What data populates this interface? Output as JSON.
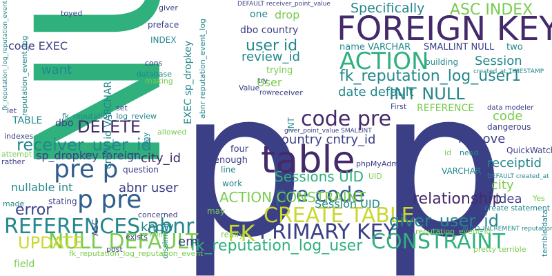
{
  "palette": {
    "navy": "#3b3f86",
    "blue": "#2f5d8c",
    "teal": "#23878c",
    "green": "#2fb07d",
    "lime": "#79cc4f",
    "yellow": "#c9d82f",
    "purple": "#442a6a",
    "grey": "#8a8a8a"
  },
  "words": [
    {
      "text": "NULL",
      "color": "green"
    },
    {
      "text": "p",
      "color": "navy"
    },
    {
      "text": "p",
      "color": "navy"
    },
    {
      "text": "FOREIGN KEY",
      "color": "purple"
    },
    {
      "text": "table",
      "color": "purple"
    },
    {
      "text": "pre p",
      "color": "blue"
    },
    {
      "text": "p pre",
      "color": "blue"
    },
    {
      "text": "REFERENCES abnr",
      "color": "teal"
    },
    {
      "text": "CREATE TABLE",
      "color": "yellow"
    },
    {
      "text": "FK",
      "color": "yellow"
    },
    {
      "text": "PRIMARY KEY",
      "color": "navy"
    },
    {
      "text": "NULL DEFAULT",
      "color": "lime"
    },
    {
      "text": "CONSTRAINT",
      "color": "green"
    },
    {
      "text": "ACTION",
      "color": "green"
    },
    {
      "text": "code pre",
      "color": "purple"
    },
    {
      "text": "pre code",
      "color": "blue"
    },
    {
      "text": "receiver_user_id",
      "color": "teal"
    },
    {
      "text": "fk_reputation_log_user",
      "color": "green"
    },
    {
      "text": "fk_reputation_log_user1",
      "color": "teal"
    },
    {
      "text": "giver_user_id",
      "color": "teal"
    },
    {
      "text": "UPDATE",
      "color": "yellow"
    },
    {
      "text": "DELETE",
      "color": "purple"
    },
    {
      "text": "ACTION CONSTRAINT",
      "color": "lime"
    },
    {
      "text": "INT NULL",
      "color": "teal"
    },
    {
      "text": "user id",
      "color": "teal"
    },
    {
      "text": "ASC INDEX",
      "color": "lime"
    },
    {
      "text": "Specifically",
      "color": "teal"
    },
    {
      "text": "sp_dropkey foreign",
      "color": "navy"
    },
    {
      "text": "nullable int",
      "color": "teal"
    },
    {
      "text": "abnr user",
      "color": "navy"
    },
    {
      "text": "city_id",
      "color": "purple"
    },
    {
      "text": "Sessions UID",
      "color": "green"
    },
    {
      "text": "Session UID",
      "color": "teal"
    },
    {
      "text": "relationship",
      "color": "purple"
    },
    {
      "text": "error",
      "color": "navy"
    },
    {
      "text": "country cntry_id",
      "color": "navy"
    },
    {
      "text": "date default",
      "color": "teal"
    },
    {
      "text": "remove",
      "color": "navy"
    },
    {
      "text": "receiptid",
      "color": "teal"
    },
    {
      "text": "city",
      "color": "lime"
    },
    {
      "text": "idea",
      "color": "navy"
    },
    {
      "text": "code",
      "color": "lime"
    },
    {
      "text": "REFERENCE",
      "color": "lime"
    },
    {
      "text": "Session",
      "color": "teal"
    },
    {
      "text": "review_id",
      "color": "teal"
    },
    {
      "text": "dbo country",
      "color": "navy"
    },
    {
      "text": "name VARCHAR",
      "color": "teal"
    },
    {
      "text": "SMALLINT NULL",
      "color": "navy"
    },
    {
      "text": "two",
      "color": "teal"
    },
    {
      "text": "drop",
      "color": "lime"
    },
    {
      "text": "one",
      "color": "teal"
    },
    {
      "text": "code EXEC",
      "color": "navy"
    },
    {
      "text": "TABLE",
      "color": "teal"
    },
    {
      "text": "dbo",
      "color": "navy"
    },
    {
      "text": "want",
      "color": "teal"
    },
    {
      "text": "know",
      "color": "teal"
    },
    {
      "text": "em",
      "color": "navy"
    },
    {
      "text": "field",
      "color": "lime"
    },
    {
      "text": "really",
      "color": "lime"
    },
    {
      "text": "may",
      "color": "lime"
    },
    {
      "text": "work",
      "color": "teal"
    },
    {
      "text": "four",
      "color": "navy"
    },
    {
      "text": "enough",
      "color": "navy"
    },
    {
      "text": "line",
      "color": "teal"
    },
    {
      "text": "stating",
      "color": "navy"
    },
    {
      "text": "made",
      "color": "teal"
    },
    {
      "text": "question",
      "color": "navy"
    },
    {
      "text": "User",
      "color": "lime"
    },
    {
      "text": "trying",
      "color": "lime"
    },
    {
      "text": "Value",
      "color": "navy"
    },
    {
      "text": "VARCHAR",
      "color": "teal"
    },
    {
      "text": "dangerous",
      "color": "navy"
    },
    {
      "text": "QuickWatch",
      "color": "navy"
    },
    {
      "text": "phpMyAdmin",
      "color": "navy"
    },
    {
      "text": "UID",
      "color": "lime"
    },
    {
      "text": "Yes",
      "color": "lime"
    },
    {
      "text": "building",
      "color": "teal"
    },
    {
      "text": "First",
      "color": "navy"
    },
    {
      "text": "fk_reputation_log_review",
      "color": "teal"
    },
    {
      "text": "cntry_id VARCHAR",
      "color": "teal"
    },
    {
      "text": "EXEC sp_dropkey",
      "color": "teal"
    },
    {
      "text": "reputation_event_id",
      "color": "lime"
    },
    {
      "text": "create statement",
      "color": "teal"
    },
    {
      "text": "dissimilar",
      "color": "teal"
    },
    {
      "text": "concerned",
      "color": "navy"
    },
    {
      "text": "exists",
      "color": "navy"
    },
    {
      "text": "post",
      "color": "navy"
    },
    {
      "text": "None",
      "color": "lime"
    },
    {
      "text": "ASC",
      "color": "navy"
    },
    {
      "text": "pretty terrible",
      "color": "lime"
    },
    {
      "text": "terrible data",
      "color": "teal"
    },
    {
      "text": "fk_reputation_log_reputation_event",
      "color": "lime"
    },
    {
      "text": "reputation_event_log",
      "color": "teal"
    },
    {
      "text": "abnr reputation_event_log",
      "color": "teal"
    },
    {
      "text": "INDEX",
      "color": "teal"
    },
    {
      "text": "preface",
      "color": "navy"
    },
    {
      "text": "toyed",
      "color": "navy"
    },
    {
      "text": "giver",
      "color": "navy"
    },
    {
      "text": "database",
      "color": "teal"
    },
    {
      "text": "making",
      "color": "lime"
    },
    {
      "text": "cons",
      "color": "navy"
    },
    {
      "text": "set",
      "color": "navy"
    },
    {
      "text": "let",
      "color": "navy"
    },
    {
      "text": "indexes",
      "color": "navy"
    },
    {
      "text": "attempt",
      "color": "lime"
    },
    {
      "text": "rather",
      "color": "navy"
    },
    {
      "text": "allowed",
      "color": "lime"
    },
    {
      "text": "way",
      "color": "teal"
    },
    {
      "text": "need",
      "color": "teal"
    },
    {
      "text": "receiver",
      "color": "navy"
    },
    {
      "text": "row",
      "color": "navy"
    },
    {
      "text": "try",
      "color": "navy"
    },
    {
      "text": "id",
      "color": "lime"
    },
    {
      "text": "data modeler",
      "color": "navy"
    },
    {
      "text": "created_at TIMESTAMP",
      "color": "teal"
    },
    {
      "text": "DEFAULT created_at",
      "color": "teal"
    },
    {
      "text": "AUTO_INCREMENT reputation_event_id",
      "color": "teal"
    },
    {
      "text": "DEFAULT receiver_point_value",
      "color": "navy"
    },
    {
      "text": "giver_point_value SMALLINT",
      "color": "navy"
    },
    {
      "text": "INT",
      "color": "teal"
    },
    {
      "text": "fk_reputation_log_reputation_event",
      "color": "teal"
    }
  ]
}
